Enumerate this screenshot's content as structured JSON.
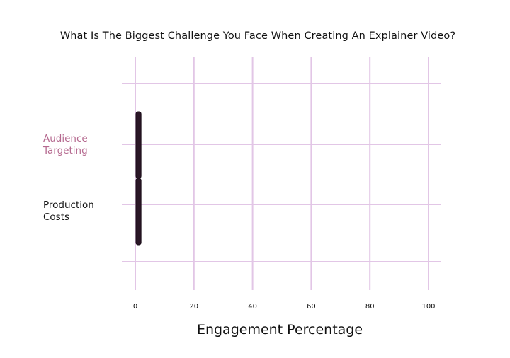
{
  "chart_data": {
    "type": "bar",
    "orientation": "horizontal",
    "title": "What Is The Biggest Challenge You Face When Creating An Explainer Video?",
    "xlabel": "Engagement Percentage",
    "ylabel": "",
    "categories": [
      "Audience\nTargeting",
      "Production\nCosts"
    ],
    "category_colors": [
      "#b5698f",
      "#111111"
    ],
    "values": [
      1,
      1
    ],
    "bar_color": "#2a1626",
    "xlim": [
      0,
      100
    ],
    "x_ticks": [
      0,
      20,
      40,
      60,
      80,
      100
    ],
    "grid": true,
    "grid_color": "#e2c6e6",
    "legend": "none"
  }
}
